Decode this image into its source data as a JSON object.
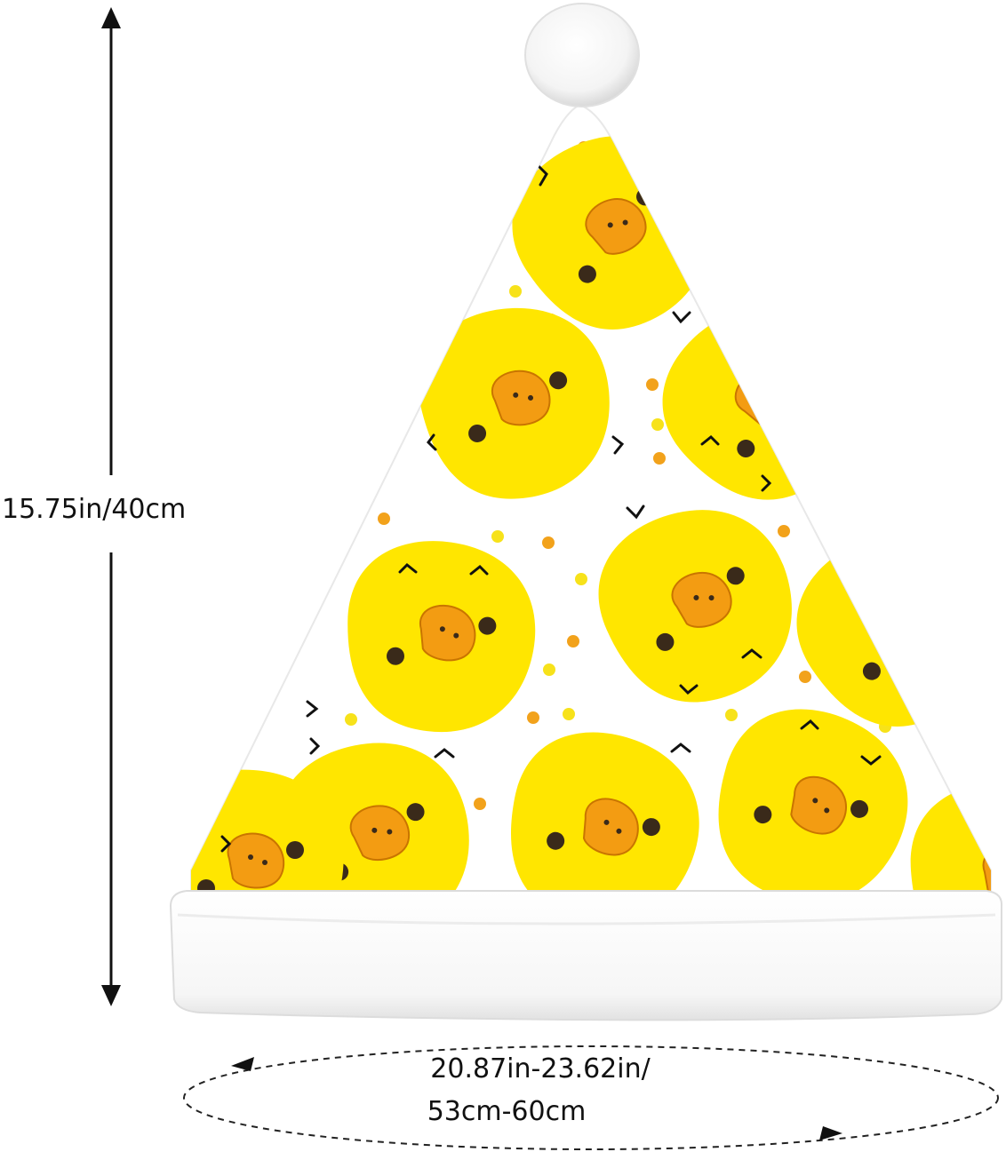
{
  "product": {
    "name": "Santa hat with yellow chick print",
    "pattern_icon": "yellow-chick-icon",
    "colors": {
      "chick_yellow": "#ffe600",
      "beak_orange": "#f39c12",
      "eye_dark": "#3a2a1a",
      "trim_white": "#ffffff",
      "dot_orange": "#f2a21b",
      "dot_yellow": "#f7e21a"
    }
  },
  "dimensions": {
    "height_label": "15.75in/40cm",
    "circumference_line1": "20.87in-23.62in/",
    "circumference_line2": "53cm-60cm"
  }
}
